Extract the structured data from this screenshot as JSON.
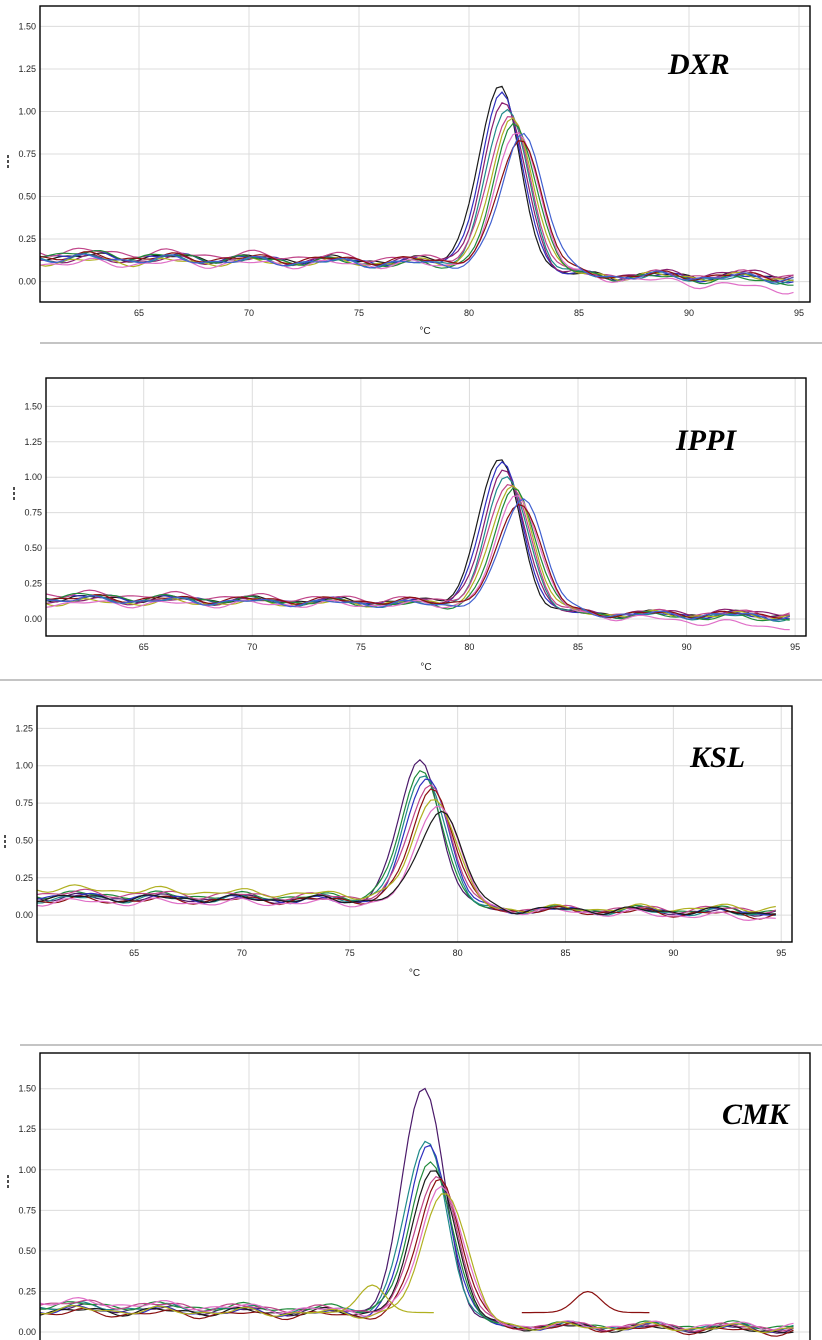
{
  "chart_data": [
    {
      "type": "line",
      "title": "DXR",
      "xlabel": "°C",
      "ylabel": "",
      "xlim": [
        60.5,
        95.5
      ],
      "ylim": [
        -0.12,
        1.62
      ],
      "xticks": [
        "65",
        "70",
        "75",
        "80",
        "85",
        "90",
        "95"
      ],
      "yticks": [
        "0.00",
        "0.25",
        "0.50",
        "0.75",
        "1.00",
        "1.25",
        "1.50"
      ],
      "grid": true,
      "peak_x": 82,
      "series": [
        {
          "values": [
            0.15,
            0.12,
            0.03
          ],
          "peak": 1.17,
          "color": "#1a1a1a"
        },
        {
          "values": [
            0.16,
            0.11,
            0.02
          ],
          "peak": 1.12,
          "color": "#2f2fbf"
        },
        {
          "values": [
            0.13,
            0.12,
            0.05
          ],
          "peak": 1.08,
          "color": "#8a1f6f"
        },
        {
          "values": [
            0.14,
            0.1,
            0.01
          ],
          "peak": 1.04,
          "color": "#1f8a8a"
        },
        {
          "values": [
            0.18,
            0.13,
            0.04
          ],
          "peak": 1.01,
          "color": "#c0458a"
        },
        {
          "values": [
            0.12,
            0.11,
            0.02
          ],
          "peak": 0.98,
          "color": "#b0b020"
        },
        {
          "values": [
            0.17,
            0.09,
            0.0
          ],
          "peak": 0.95,
          "color": "#1f8a3a"
        },
        {
          "values": [
            0.11,
            0.1,
            -0.05
          ],
          "peak": 0.92,
          "color": "#e070c8"
        },
        {
          "values": [
            0.15,
            0.12,
            0.03
          ],
          "peak": 0.88,
          "color": "#8a1010"
        },
        {
          "values": [
            0.14,
            0.1,
            0.02
          ],
          "peak": 0.9,
          "color": "#4060d0"
        }
      ]
    },
    {
      "type": "line",
      "title": "IPPI",
      "xlabel": "°C",
      "ylabel": "",
      "xlim": [
        60.5,
        95.5
      ],
      "ylim": [
        -0.12,
        1.7
      ],
      "xticks": [
        "65",
        "70",
        "75",
        "80",
        "85",
        "90",
        "95"
      ],
      "yticks": [
        "0.00",
        "0.25",
        "0.50",
        "0.75",
        "1.00",
        "1.25",
        "1.50"
      ],
      "grid": true,
      "peak_x": 82,
      "series": [
        {
          "values": [
            0.15,
            0.12,
            0.03
          ],
          "peak": 1.16,
          "color": "#1a1a1a"
        },
        {
          "values": [
            0.16,
            0.11,
            0.02
          ],
          "peak": 1.12,
          "color": "#2f2fbf"
        },
        {
          "values": [
            0.13,
            0.12,
            0.05
          ],
          "peak": 1.07,
          "color": "#8a1f6f"
        },
        {
          "values": [
            0.14,
            0.1,
            0.01
          ],
          "peak": 1.03,
          "color": "#1f8a8a"
        },
        {
          "values": [
            0.18,
            0.13,
            0.04
          ],
          "peak": 1.0,
          "color": "#c0458a"
        },
        {
          "values": [
            0.12,
            0.11,
            0.02
          ],
          "peak": 0.97,
          "color": "#b0b020"
        },
        {
          "values": [
            0.17,
            0.09,
            0.0
          ],
          "peak": 0.94,
          "color": "#1f8a3a"
        },
        {
          "values": [
            0.11,
            0.1,
            -0.06
          ],
          "peak": 0.91,
          "color": "#e070c8"
        },
        {
          "values": [
            0.15,
            0.12,
            0.03
          ],
          "peak": 0.87,
          "color": "#8a1010"
        },
        {
          "values": [
            0.14,
            0.1,
            0.02
          ],
          "peak": 0.89,
          "color": "#4060d0"
        }
      ]
    },
    {
      "type": "line",
      "title": "KSL",
      "xlabel": "°C",
      "ylabel": "",
      "xlim": [
        60.5,
        95.5
      ],
      "ylim": [
        -0.18,
        1.4
      ],
      "xticks": [
        "65",
        "70",
        "75",
        "80",
        "85",
        "90",
        "95"
      ],
      "yticks": [
        "0.00",
        "0.25",
        "0.50",
        "0.75",
        "1.00",
        "1.25"
      ],
      "grid": true,
      "peak_x": 78.8,
      "series": [
        {
          "values": [
            0.12,
            0.1,
            0.02
          ],
          "peak": 1.06,
          "color": "#4b1a6a"
        },
        {
          "values": [
            0.14,
            0.12,
            0.03
          ],
          "peak": 1.0,
          "color": "#1f8a3a"
        },
        {
          "values": [
            0.11,
            0.11,
            0.01
          ],
          "peak": 0.98,
          "color": "#1f8a8a"
        },
        {
          "values": [
            0.13,
            0.09,
            0.02
          ],
          "peak": 0.96,
          "color": "#2f2fbf"
        },
        {
          "values": [
            0.15,
            0.12,
            0.04
          ],
          "peak": 0.92,
          "color": "#c0458a"
        },
        {
          "values": [
            0.1,
            0.1,
            0.0
          ],
          "peak": 0.88,
          "color": "#8a1010"
        },
        {
          "values": [
            0.18,
            0.13,
            0.05
          ],
          "peak": 0.84,
          "color": "#b0b020"
        },
        {
          "values": [
            0.09,
            0.08,
            -0.02
          ],
          "peak": 0.78,
          "color": "#e070c8"
        },
        {
          "values": [
            0.12,
            0.1,
            0.02
          ],
          "peak": 0.74,
          "color": "#1a1a1a"
        }
      ]
    },
    {
      "type": "line",
      "title": "CMK",
      "xlabel": "",
      "ylabel": "",
      "xlim": [
        60.5,
        95.5
      ],
      "ylim": [
        -0.08,
        1.72
      ],
      "xticks": [],
      "yticks": [
        "0.00",
        "0.25",
        "0.50",
        "0.75",
        "1.00",
        "1.25",
        "1.50"
      ],
      "grid": true,
      "peak_x": 78.5,
      "series": [
        {
          "values": [
            0.15,
            0.12,
            0.02
          ],
          "peak": 1.55,
          "color": "#4b1a6a"
        },
        {
          "values": [
            0.16,
            0.13,
            0.03
          ],
          "peak": 1.22,
          "color": "#1f8a8a"
        },
        {
          "values": [
            0.14,
            0.11,
            0.02
          ],
          "peak": 1.18,
          "color": "#2f2fbf"
        },
        {
          "values": [
            0.17,
            0.14,
            0.04
          ],
          "peak": 1.1,
          "color": "#1f8a3a"
        },
        {
          "values": [
            0.13,
            0.12,
            0.01
          ],
          "peak": 1.06,
          "color": "#1a1a1a"
        },
        {
          "values": [
            0.18,
            0.13,
            0.03
          ],
          "peak": 1.02,
          "color": "#c0458a"
        },
        {
          "values": [
            0.12,
            0.1,
            0.0
          ],
          "peak": 0.98,
          "color": "#8a1010"
        },
        {
          "values": [
            0.19,
            0.12,
            0.04
          ],
          "peak": 0.95,
          "color": "#e070c8"
        },
        {
          "values": [
            0.14,
            0.11,
            0.02
          ],
          "peak": 0.92,
          "color": "#b0b020"
        }
      ]
    }
  ]
}
